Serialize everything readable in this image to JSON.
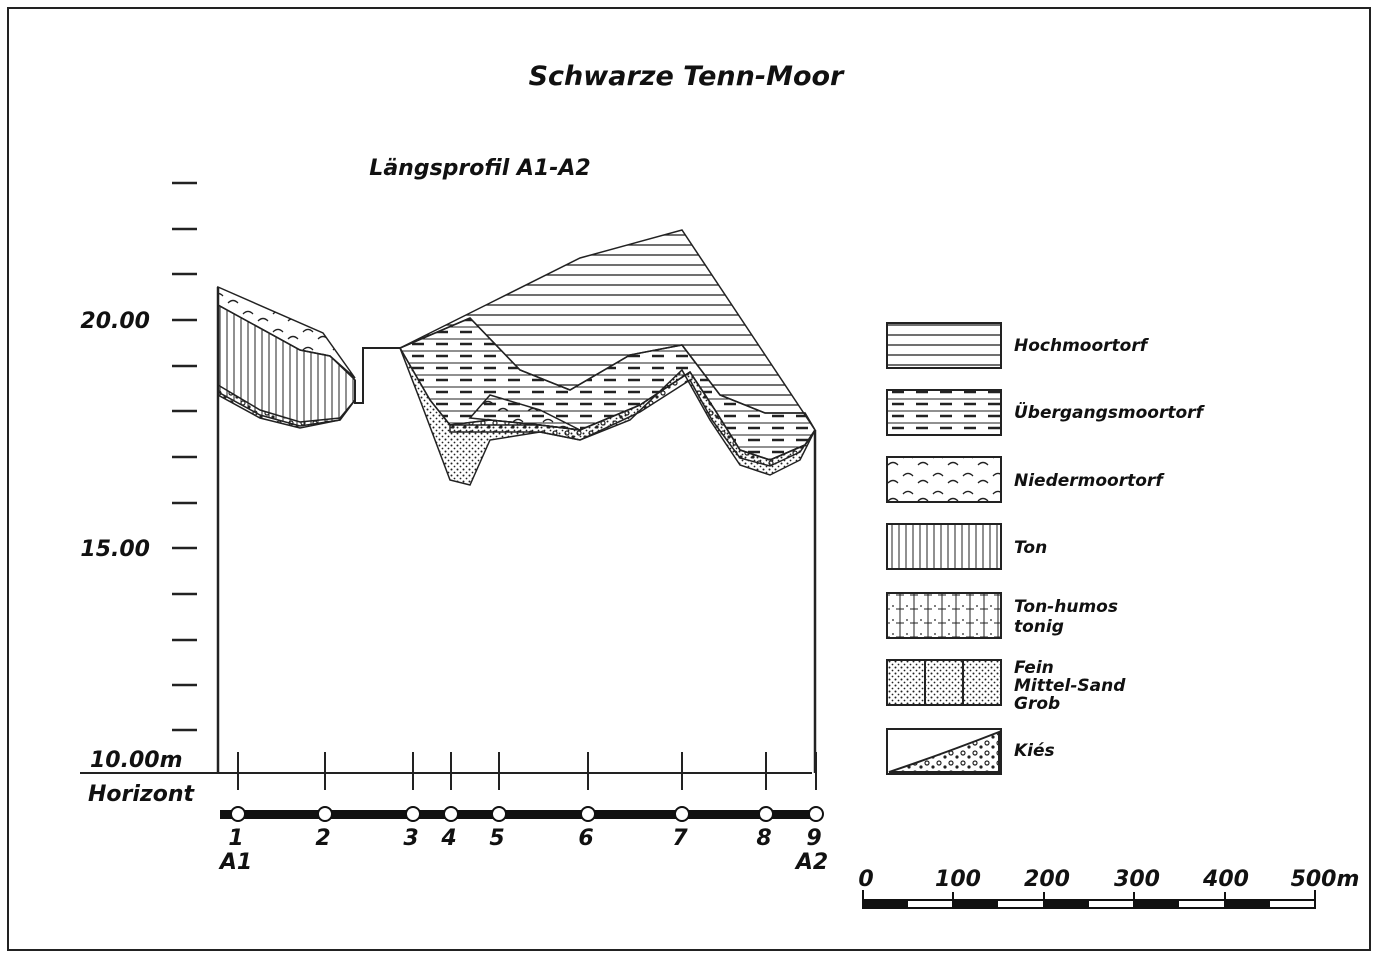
{
  "title": "Schwarze Tenn-Moor",
  "subtitle": "Längsprofil A1-A2",
  "elevation_labels": [
    "20.00",
    "15.00",
    "10.00m"
  ],
  "baseline_label": "Horizont",
  "boreholes": [
    "1",
    "2",
    "3",
    "4",
    "5",
    "6",
    "7",
    "8",
    "9"
  ],
  "profile_ends": [
    "A1",
    "A2"
  ],
  "legend": [
    {
      "lines": [
        "Hochmoortorf"
      ]
    },
    {
      "lines": [
        "Übergangsmoortorf"
      ]
    },
    {
      "lines": [
        "Niedermoortorf"
      ]
    },
    {
      "lines": [
        "Ton"
      ]
    },
    {
      "lines": [
        "Ton-humos",
        "tonig"
      ]
    },
    {
      "lines": [
        "Fein",
        "Mittel-Sand",
        "Grob"
      ]
    },
    {
      "lines": [
        "Kiés"
      ]
    }
  ],
  "scale_labels": [
    "0",
    "100",
    "200",
    "300",
    "400",
    "500m"
  ]
}
